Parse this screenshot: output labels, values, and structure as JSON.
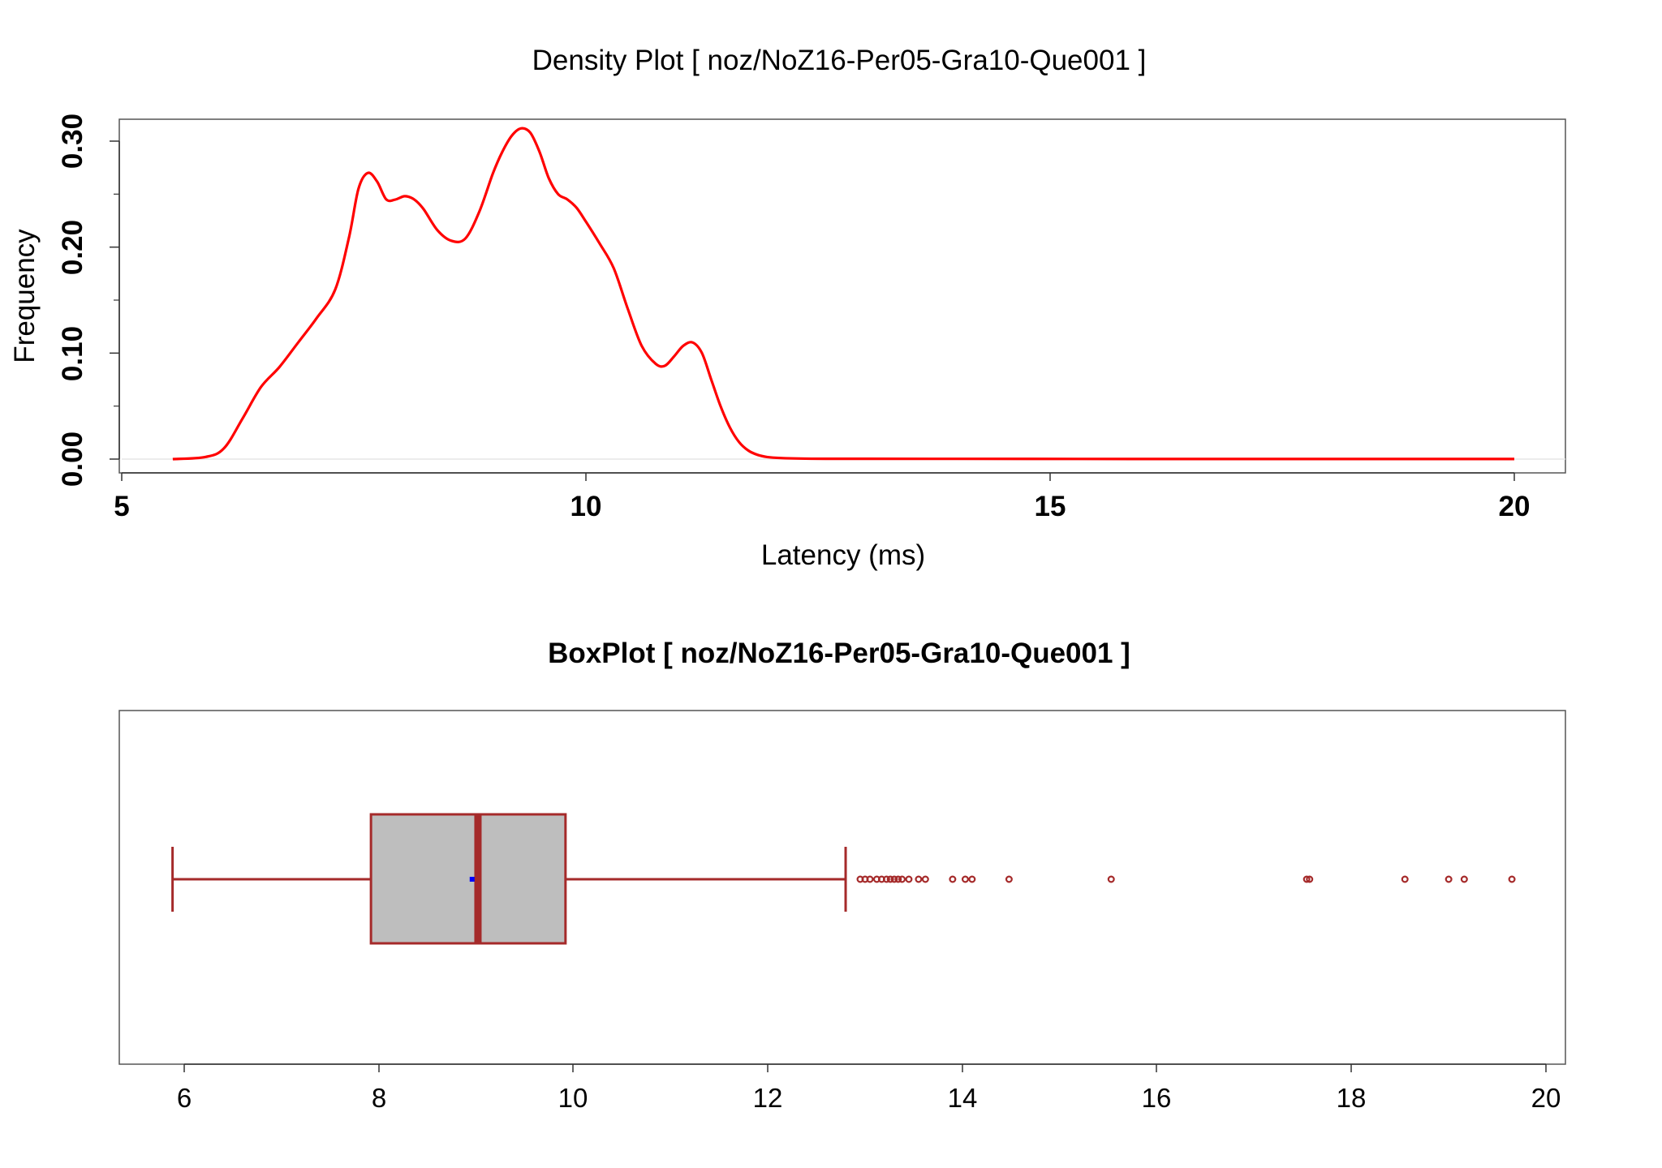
{
  "colors": {
    "density_line": "#ff0000",
    "box_fill": "#bebebe",
    "box_stroke": "#a52a2a",
    "mean_marker": "#0000ff",
    "outlier": "#a52a2a",
    "background": "#ffffff"
  },
  "chart_data": [
    {
      "type": "line",
      "title": "Density Plot [ noz/NoZ16-Per05-Gra10-Que001 ]",
      "xlabel": "Latency (ms)",
      "ylabel": "Frequency",
      "xlim": [
        5,
        20.6
      ],
      "ylim": [
        -0.012,
        0.322
      ],
      "x_ticks": [
        "5",
        "10",
        "15",
        "20"
      ],
      "y_ticks": [
        "0.00",
        "0.10",
        "0.20",
        "0.30"
      ],
      "y_minor_ticks": [
        0.05,
        0.15,
        0.25
      ],
      "grid": false,
      "series": [
        {
          "x": [
            5.55,
            5.9,
            6.1,
            6.3,
            6.5,
            6.7,
            6.9,
            7.1,
            7.3,
            7.45,
            7.55,
            7.65,
            7.75,
            7.85,
            7.95,
            8.05,
            8.15,
            8.25,
            8.4,
            8.55,
            8.7,
            8.85,
            9.0,
            9.1,
            9.2,
            9.3,
            9.4,
            9.5,
            9.6,
            9.7,
            9.8,
            9.9,
            10.0,
            10.15,
            10.3,
            10.45,
            10.6,
            10.75,
            10.85,
            10.95,
            11.05,
            11.15,
            11.25,
            11.35,
            11.45,
            11.55,
            11.65,
            11.75,
            11.85,
            11.95,
            12.1,
            12.3,
            12.6,
            13.0,
            14.0,
            16.0,
            18.0,
            20.0
          ],
          "y": [
            0.0,
            0.002,
            0.01,
            0.038,
            0.068,
            0.087,
            0.11,
            0.133,
            0.16,
            0.21,
            0.255,
            0.27,
            0.262,
            0.245,
            0.245,
            0.248,
            0.245,
            0.236,
            0.216,
            0.206,
            0.208,
            0.233,
            0.27,
            0.29,
            0.305,
            0.312,
            0.308,
            0.29,
            0.265,
            0.25,
            0.245,
            0.237,
            0.224,
            0.203,
            0.18,
            0.142,
            0.107,
            0.09,
            0.088,
            0.097,
            0.107,
            0.11,
            0.1,
            0.075,
            0.05,
            0.03,
            0.016,
            0.008,
            0.004,
            0.002,
            0.001,
            0.0005,
            0.0003,
            0.0003,
            0.0002,
            0.0001,
            0.0001,
            0.0001
          ]
        }
      ]
    },
    {
      "type": "box",
      "title": "BoxPlot [ noz/NoZ16-Per05-Gra10-Que001 ]",
      "xlabel": "",
      "ylabel": "",
      "xlim": [
        5.35,
        20.2
      ],
      "x_ticks": [
        "6",
        "8",
        "10",
        "12",
        "14",
        "16",
        "18",
        "20"
      ],
      "grid": false,
      "whisker_low": 5.88,
      "q1": 7.92,
      "median": 9.02,
      "q3": 9.92,
      "whisker_high": 12.8,
      "mean": 8.96,
      "outliers": [
        12.95,
        13.0,
        13.05,
        13.12,
        13.17,
        13.22,
        13.26,
        13.3,
        13.34,
        13.38,
        13.45,
        13.55,
        13.62,
        13.9,
        14.03,
        14.1,
        14.48,
        15.53,
        17.54,
        17.57,
        18.55,
        19.0,
        19.16,
        19.65
      ]
    }
  ]
}
